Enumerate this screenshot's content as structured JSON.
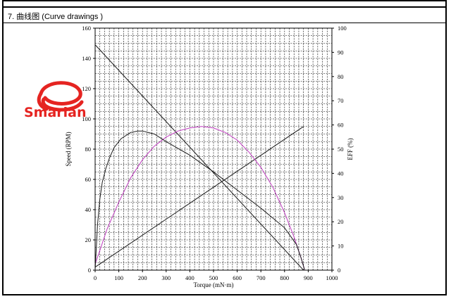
{
  "section_title": "7. 曲线图 (Curve drawings )",
  "logo": {
    "text": "Smarian",
    "color": "#e52421"
  },
  "colors": {
    "black_curves": "#1a1a1a",
    "efficiency_curve": "#c03cc0",
    "grid": "#000000"
  },
  "chart_data": {
    "type": "line",
    "title": "",
    "xlabel": "Torque (mN·m)",
    "ylabel_left": "Speed (RPM)",
    "ylabel_right": "EFF (%)",
    "xlim": [
      0,
      1000
    ],
    "ylim_left": [
      0,
      160
    ],
    "ylim_right": [
      0,
      100
    ],
    "x_ticks": [
      0,
      100,
      200,
      300,
      400,
      500,
      600,
      700,
      800,
      900,
      1000
    ],
    "y_ticks_left": [
      0,
      20,
      40,
      60,
      80,
      100,
      120,
      140,
      160
    ],
    "y_ticks_right": [
      0,
      10,
      20,
      30,
      40,
      50,
      60,
      70,
      80,
      90,
      100
    ],
    "grid": true,
    "series": [
      {
        "axis": "left",
        "color": "#1a1a1a",
        "x": [
          0,
          880
        ],
        "y": [
          149,
          0
        ]
      },
      {
        "axis": "left",
        "color": "#1a1a1a",
        "x": [
          0,
          880
        ],
        "y": [
          2,
          95
        ]
      },
      {
        "axis": "left",
        "color": "#c03cc0",
        "x": [
          0,
          20,
          50,
          100,
          150,
          200,
          250,
          300,
          350,
          400,
          450,
          500,
          550,
          600,
          650,
          700,
          750,
          800,
          840,
          870,
          885
        ],
        "y": [
          4,
          13,
          27,
          45,
          61,
          73,
          82,
          88,
          92,
          94,
          95,
          94,
          91,
          86,
          78,
          68,
          55,
          38,
          22,
          8,
          0
        ]
      },
      {
        "axis": "left",
        "color": "#1a1a1a",
        "x": [
          0,
          10,
          20,
          30,
          45,
          60,
          80,
          110,
          150,
          180,
          200,
          250,
          300,
          400,
          500,
          600,
          700,
          800,
          850,
          870,
          885
        ],
        "y": [
          0,
          30,
          47,
          58,
          67,
          74,
          81,
          87,
          91,
          92,
          92,
          90,
          85,
          76,
          65,
          53,
          41,
          28,
          17,
          8,
          0
        ]
      }
    ]
  }
}
